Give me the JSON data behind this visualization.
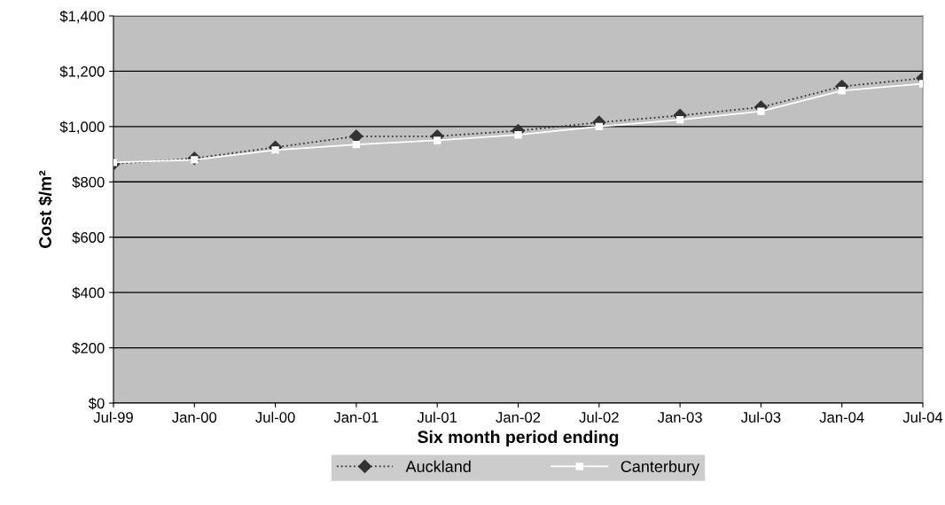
{
  "chart_data": {
    "type": "line",
    "xlabel": "Six month period ending",
    "ylabel": "Cost $/m²",
    "categories": [
      "Jul-99",
      "Jan-00",
      "Jul-00",
      "Jan-01",
      "Jul-01",
      "Jan-02",
      "Jul-02",
      "Jan-03",
      "Jul-03",
      "Jan-04",
      "Jul-04"
    ],
    "series": [
      {
        "name": "Auckland",
        "color": "#333333",
        "marker": "diamond",
        "line_style": "dotted",
        "values": [
          865,
          885,
          925,
          965,
          965,
          985,
          1015,
          1040,
          1070,
          1145,
          1175
        ]
      },
      {
        "name": "Canterbury",
        "color": "#ffffff",
        "marker": "square",
        "line_style": "solid",
        "values": [
          870,
          880,
          915,
          935,
          950,
          970,
          1000,
          1025,
          1055,
          1130,
          1155
        ]
      }
    ],
    "ylim": [
      0,
      1400
    ],
    "yticks": [
      {
        "value": 0,
        "label": "$0"
      },
      {
        "value": 200,
        "label": "$200"
      },
      {
        "value": 400,
        "label": "$400"
      },
      {
        "value": 600,
        "label": "$600"
      },
      {
        "value": 800,
        "label": "$800"
      },
      {
        "value": 1000,
        "label": "$1,000"
      },
      {
        "value": 1200,
        "label": "$1,200"
      },
      {
        "value": 1400,
        "label": "$1,400"
      }
    ],
    "grid": "y",
    "legend": "bottom"
  }
}
